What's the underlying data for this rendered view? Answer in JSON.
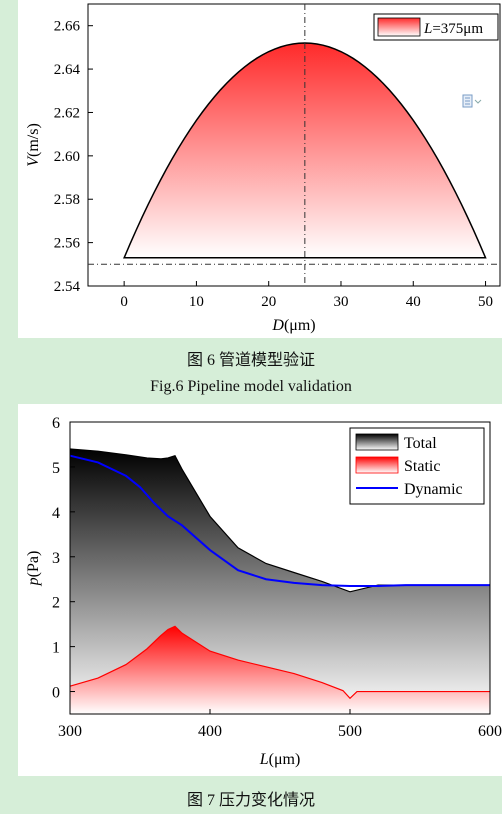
{
  "fig6": {
    "caption_cn": "图 6 管道模型验证",
    "caption_en": "Fig.6 Pipeline model validation",
    "chart_data": {
      "type": "area",
      "xlabel_italic": "D",
      "xlabel_unit": "(μm)",
      "ylabel_italic": "V",
      "ylabel_unit": "(m/s)",
      "legend_italic": "L",
      "legend_rest": "=375μm",
      "xlim": [
        -5,
        52
      ],
      "ylim": [
        2.54,
        2.67
      ],
      "xticks": [
        "0",
        "10",
        "20",
        "30",
        "40",
        "50"
      ],
      "yticks": [
        "2.54",
        "2.56",
        "2.58",
        "2.60",
        "2.62",
        "2.64",
        "2.66"
      ],
      "profile": {
        "x_min": 0,
        "x_max": 50,
        "v_wall": 2.553,
        "v_max": 2.652
      },
      "ref_vertical_x": 25,
      "ref_horizontal_y": 2.55,
      "colors": {
        "fill_top": "#ff2a2a",
        "fill_bottom": "#ffffff",
        "ref_line": "#333333"
      }
    }
  },
  "fig7": {
    "caption_cn": "图 7 压力变化情况",
    "chart_data": {
      "type": "area",
      "xlabel_italic": "L",
      "xlabel_unit": "(μm)",
      "ylabel_italic": "p",
      "ylabel_unit": "(Pa)",
      "xlim": [
        300,
        600
      ],
      "ylim": [
        -0.5,
        6
      ],
      "xticks": [
        "300",
        "400",
        "500",
        "600"
      ],
      "yticks": [
        "0",
        "1",
        "2",
        "3",
        "4",
        "5",
        "6"
      ],
      "series": [
        {
          "name": "Total",
          "color": "#000000",
          "x": [
            300,
            320,
            340,
            355,
            365,
            370,
            375,
            380,
            400,
            420,
            440,
            460,
            480,
            500,
            520,
            540,
            560,
            580,
            600
          ],
          "y": [
            5.4,
            5.35,
            5.27,
            5.2,
            5.18,
            5.2,
            5.25,
            4.95,
            3.9,
            3.2,
            2.85,
            2.65,
            2.45,
            2.22,
            2.37,
            2.37,
            2.37,
            2.37,
            2.37
          ]
        },
        {
          "name": "Static",
          "color": "#ff0000",
          "x": [
            300,
            320,
            340,
            355,
            365,
            370,
            375,
            380,
            400,
            420,
            440,
            460,
            480,
            495,
            500,
            505,
            520,
            540,
            560,
            580,
            600
          ],
          "y": [
            0.12,
            0.3,
            0.6,
            0.95,
            1.25,
            1.38,
            1.45,
            1.3,
            0.9,
            0.7,
            0.55,
            0.4,
            0.2,
            0.02,
            -0.15,
            0.0,
            0.0,
            0.0,
            0.0,
            0.0,
            0.0
          ]
        },
        {
          "name": "Dynamic",
          "color": "#0000ff",
          "x": [
            300,
            320,
            340,
            350,
            360,
            370,
            380,
            400,
            420,
            440,
            460,
            480,
            500,
            520,
            540,
            560,
            580,
            600
          ],
          "y": [
            5.25,
            5.1,
            4.8,
            4.55,
            4.2,
            3.9,
            3.7,
            3.15,
            2.7,
            2.5,
            2.42,
            2.37,
            2.35,
            2.35,
            2.37,
            2.37,
            2.37,
            2.37
          ]
        }
      ]
    }
  }
}
